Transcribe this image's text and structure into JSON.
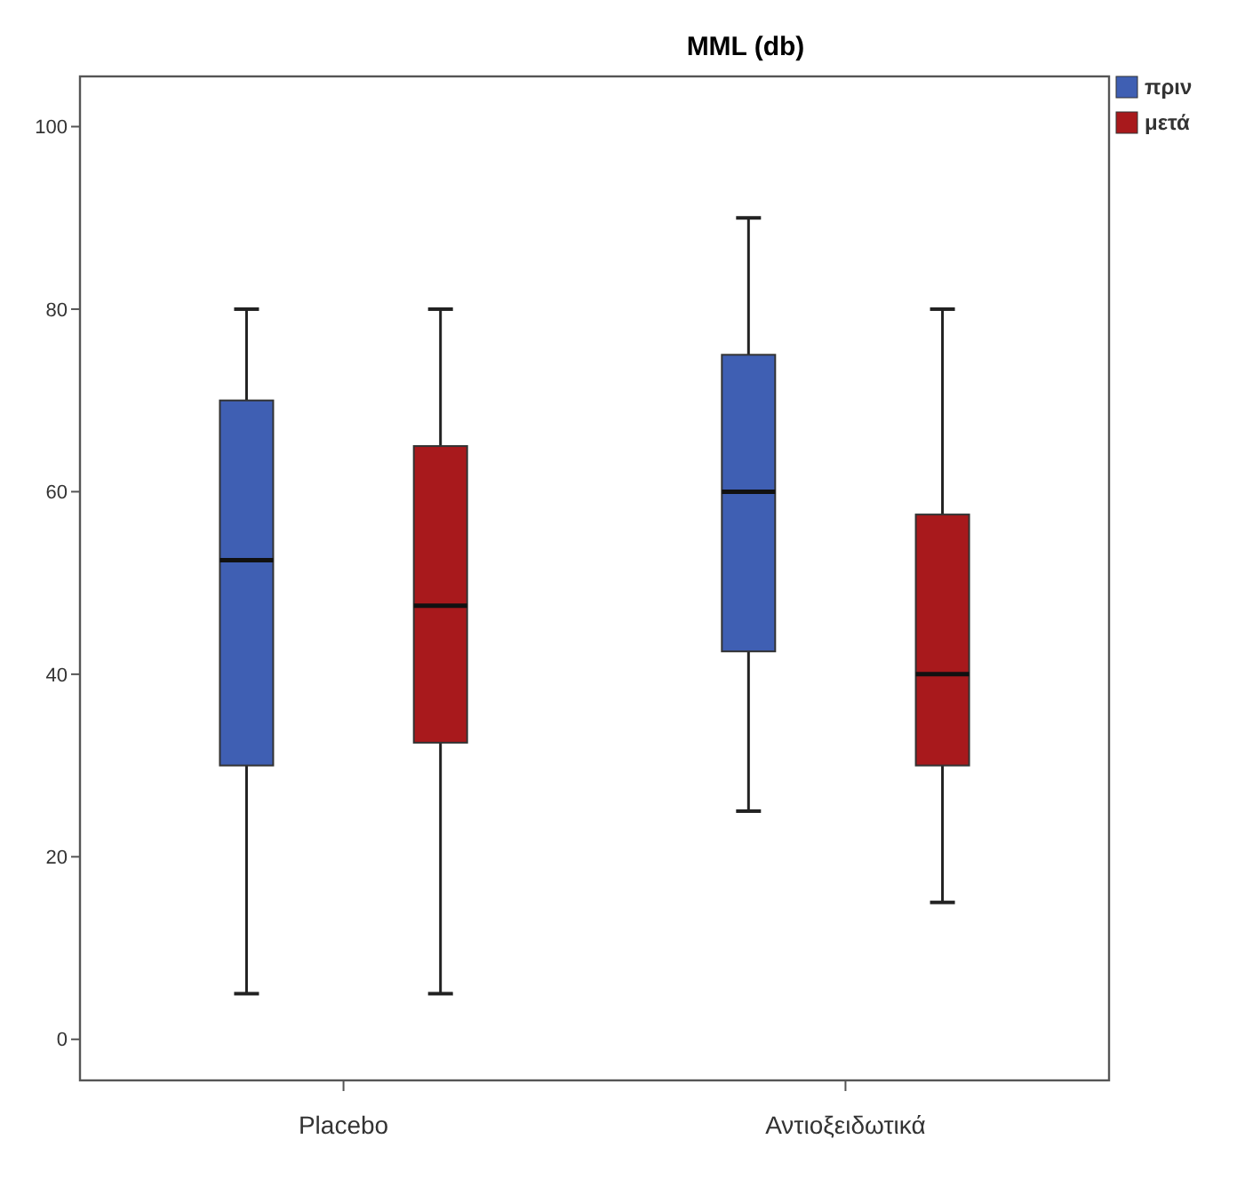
{
  "chart_data": {
    "type": "box",
    "title": "MML (db)",
    "categories": [
      "Placebo",
      "Αντιοξειδωτικά"
    ],
    "ylim": [
      -4.5,
      105.5
    ],
    "yticks": [
      0,
      20,
      40,
      60,
      80,
      100
    ],
    "legend": "top right",
    "grid": false,
    "series": [
      {
        "name": "πριν",
        "color": "#3f5fb3",
        "boxes": [
          {
            "low": 5,
            "q1": 30,
            "median": 52.5,
            "q3": 70,
            "high": 80
          },
          {
            "low": 25,
            "q1": 42.5,
            "median": 60,
            "q3": 75,
            "high": 90
          }
        ]
      },
      {
        "name": "μετά",
        "color": "#a8191c",
        "boxes": [
          {
            "low": 5,
            "q1": 32.5,
            "median": 47.5,
            "q3": 65,
            "high": 80
          },
          {
            "low": 15,
            "q1": 30,
            "median": 40,
            "q3": 57.5,
            "high": 80
          }
        ]
      }
    ]
  }
}
